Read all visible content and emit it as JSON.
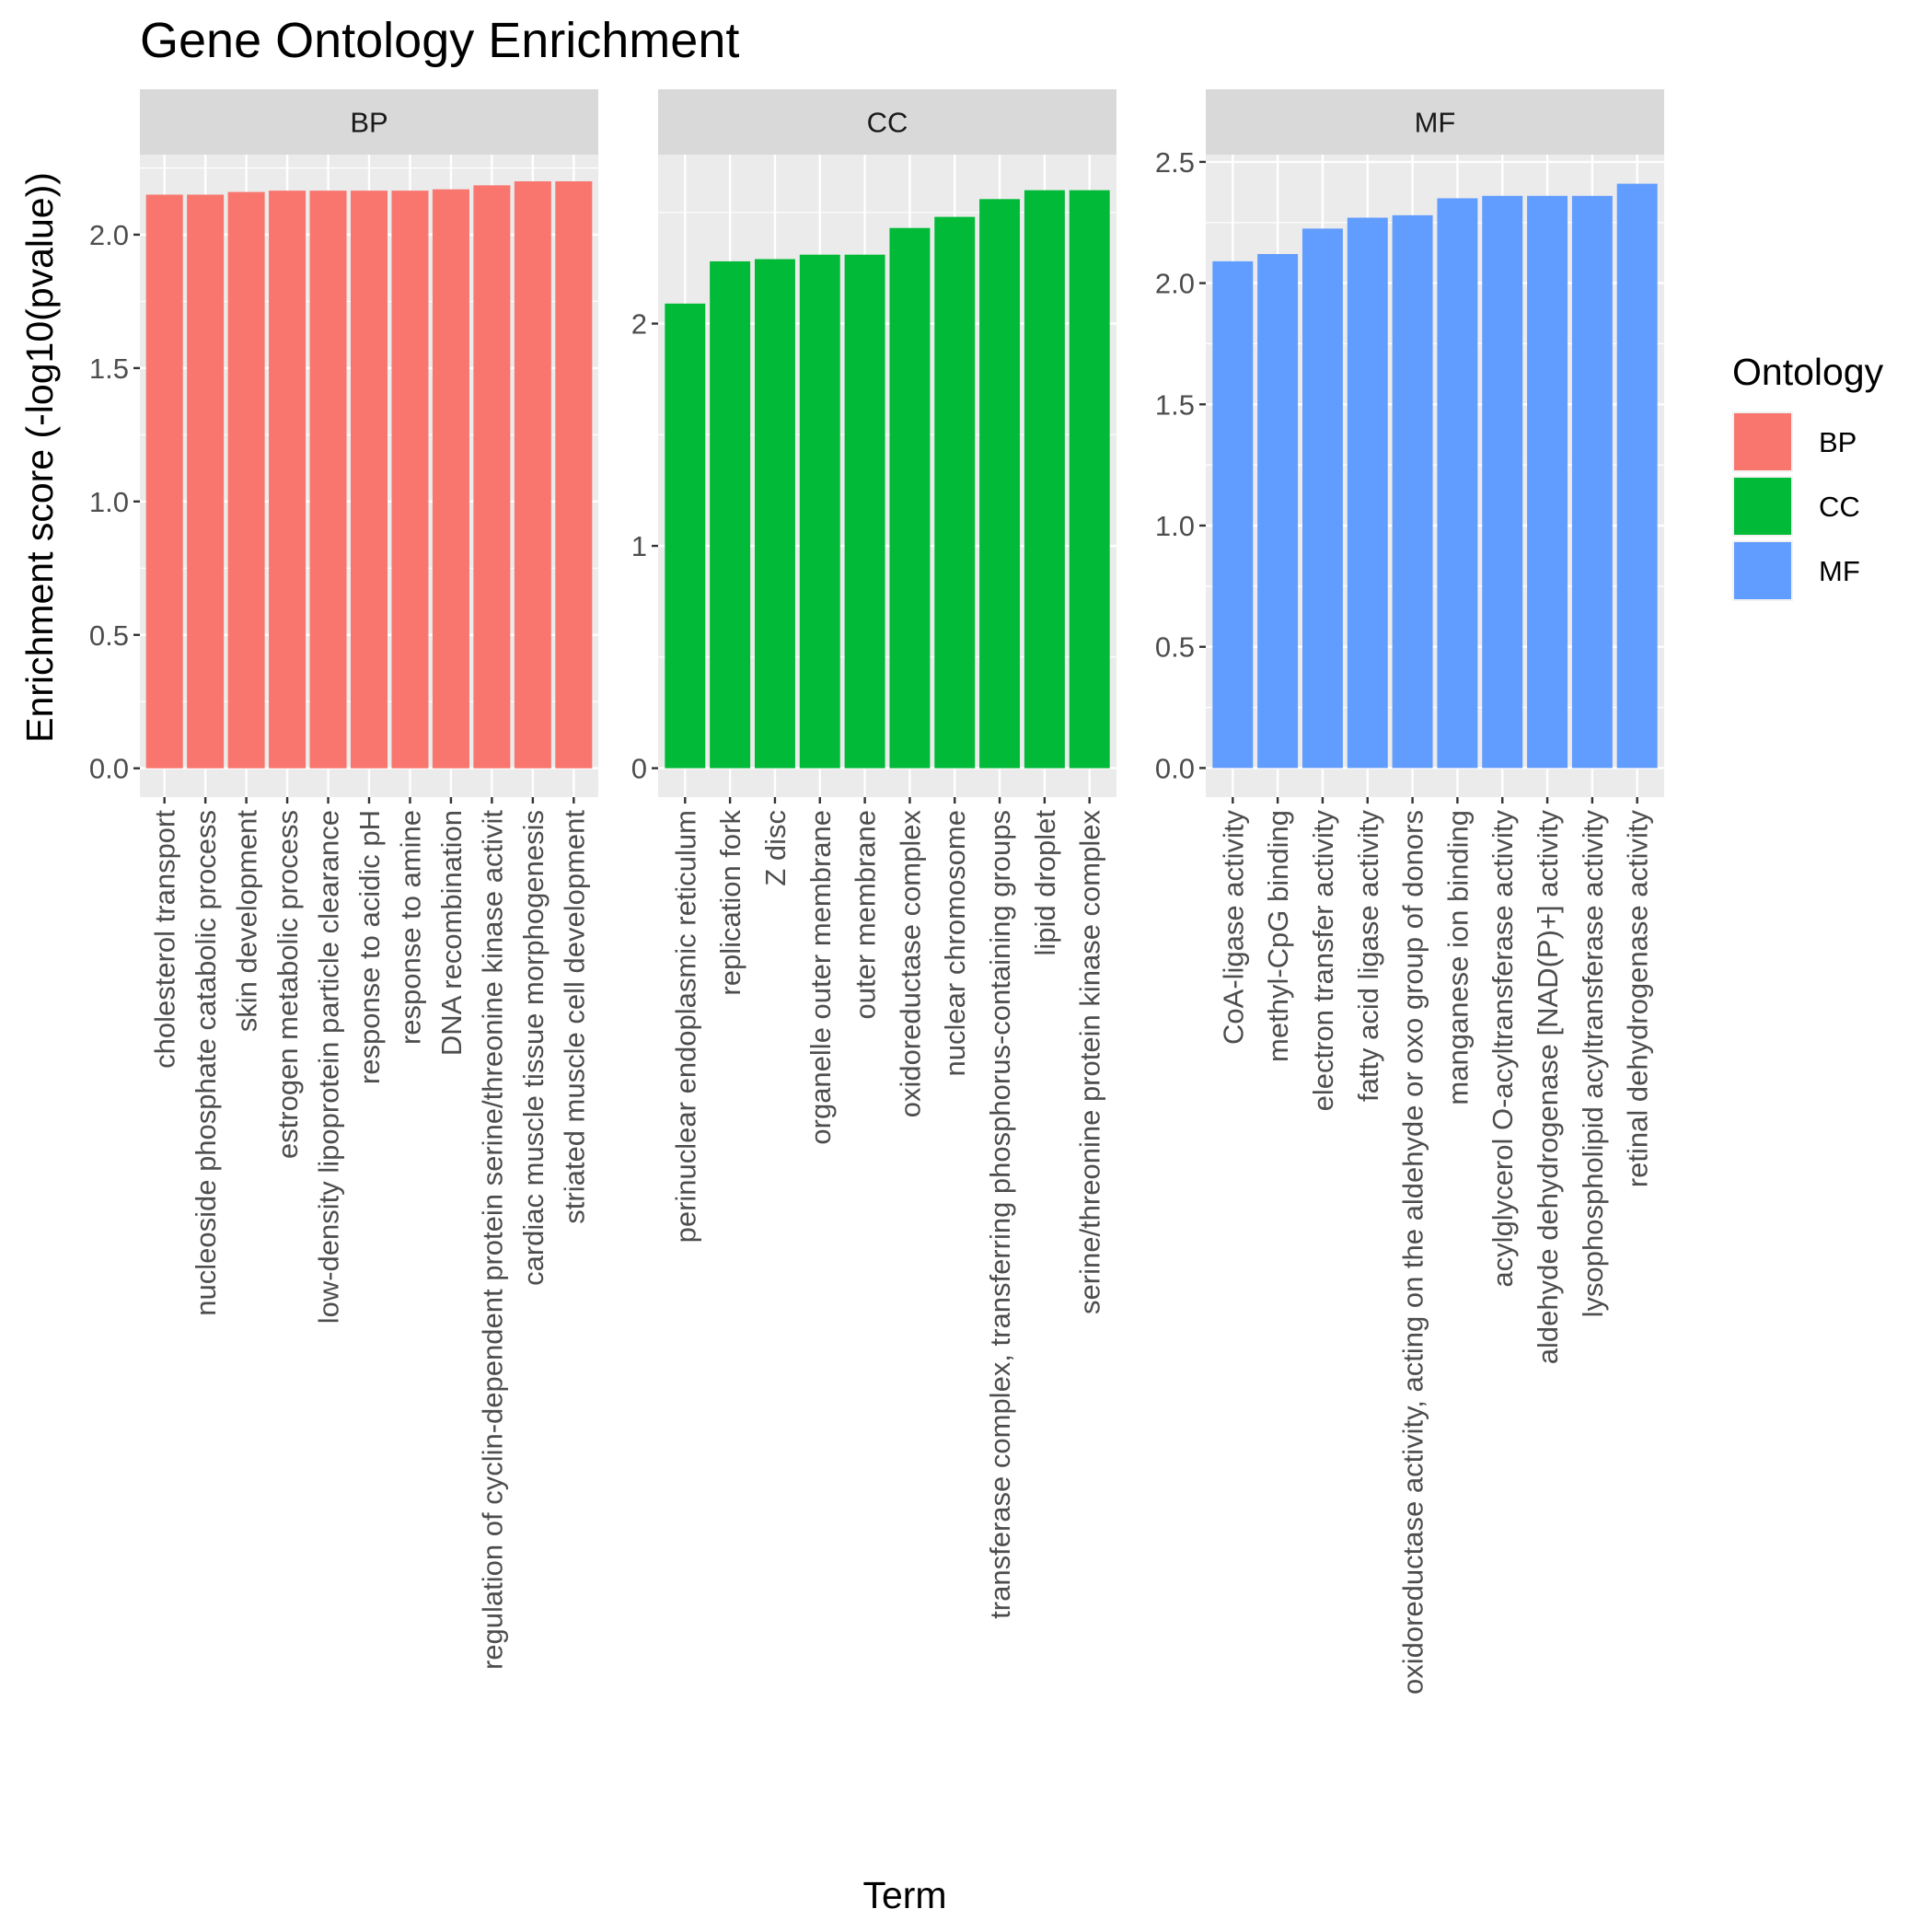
{
  "chart_data": {
    "type": "bar",
    "title": "Gene Ontology Enrichment",
    "xlabel": "Term",
    "ylabel": "Enrichment score (-log10(pvalue))",
    "grid": true,
    "legend": {
      "title": "Ontology",
      "placement": "right",
      "entries": [
        {
          "label": "BP",
          "color": "#F8766D"
        },
        {
          "label": "CC",
          "color": "#00BA38"
        },
        {
          "label": "MF",
          "color": "#619CFF"
        }
      ]
    },
    "panels": [
      {
        "strip": "BP",
        "color": "#F8766D",
        "ylim": [
          -0.108,
          2.3
        ],
        "yticks": [
          0.0,
          0.5,
          1.0,
          1.5,
          2.0
        ],
        "ytick_labels": [
          "0.0",
          "0.5",
          "1.0",
          "1.5",
          "2.0"
        ],
        "categories": [
          "cholesterol transport",
          "nucleoside phosphate catabolic process",
          "skin development",
          "estrogen metabolic process",
          "low-density lipoprotein particle clearance",
          "response to acidic pH",
          "response to amine",
          "DNA recombination",
          "regulation of cyclin-dependent protein serine/threonine kinase activit",
          "cardiac muscle tissue morphogenesis",
          "striated muscle cell development"
        ],
        "values": [
          2.15,
          2.15,
          2.16,
          2.165,
          2.165,
          2.165,
          2.165,
          2.17,
          2.185,
          2.2,
          2.2
        ]
      },
      {
        "strip": "CC",
        "color": "#00BA38",
        "ylim": [
          -0.13,
          2.76
        ],
        "yticks": [
          0,
          1,
          2
        ],
        "ytick_labels": [
          "0",
          "1",
          "2"
        ],
        "categories": [
          "perinuclear endoplasmic reticulum",
          "replication fork",
          "Z disc",
          "organelle outer membrane",
          "outer membrane",
          "oxidoreductase complex",
          "nuclear chromosome",
          "transferase complex, transferring phosphorus-containing groups",
          "lipid droplet",
          "serine/threonine protein kinase complex"
        ],
        "values": [
          2.09,
          2.28,
          2.29,
          2.31,
          2.31,
          2.43,
          2.48,
          2.56,
          2.6,
          2.6
        ]
      },
      {
        "strip": "MF",
        "color": "#619CFF",
        "ylim": [
          -0.12,
          2.53
        ],
        "yticks": [
          0.0,
          0.5,
          1.0,
          1.5,
          2.0,
          2.5
        ],
        "ytick_labels": [
          "0.0",
          "0.5",
          "1.0",
          "1.5",
          "2.0",
          "2.5"
        ],
        "categories": [
          "CoA-ligase activity",
          "methyl-CpG binding",
          "electron transfer activity",
          "fatty acid ligase activity",
          "oxidoreductase activity, acting on the aldehyde or oxo group of donors",
          "manganese ion binding",
          "acylglycerol O-acyltransferase activity",
          "aldehyde dehydrogenase [NAD(P)+] activity",
          "lysophospholipid acyltransferase activity",
          "retinal dehydrogenase activity"
        ],
        "values": [
          2.09,
          2.12,
          2.225,
          2.27,
          2.28,
          2.35,
          2.36,
          2.36,
          2.36,
          2.41
        ]
      }
    ]
  }
}
